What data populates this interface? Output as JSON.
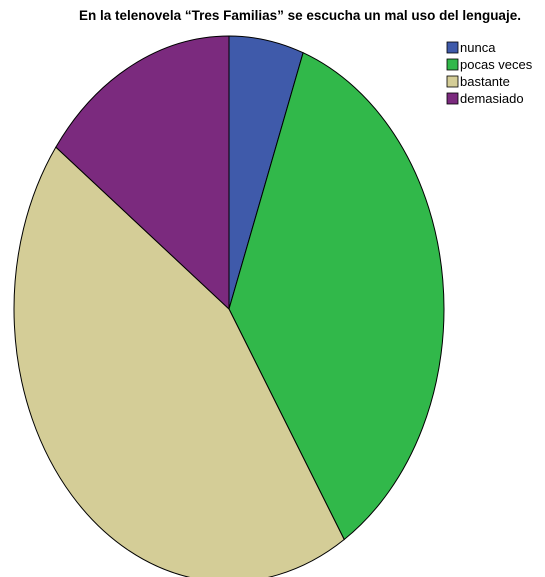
{
  "chart_data": {
    "type": "pie",
    "title": "En la telenovela “Tres Familias” se escucha un mal uso del lenguaje.",
    "series": [
      {
        "categories": [
          "nunca",
          "pocas veces",
          "bastante",
          "demasiado"
        ],
        "values": [
          5.6,
          35.4,
          44.1,
          14.9
        ],
        "unit": "%"
      }
    ],
    "colors": {
      "nunca": "#3f5aaa",
      "pocas veces": "#31b84a",
      "bastante": "#d4cd97",
      "demasiado": "#7b2a7e"
    },
    "start_angle": "top (12 o'clock), clockwise",
    "legend_position": "top-right",
    "legend_entries": [
      "nunca",
      "pocas veces",
      "bastante",
      "demasiado"
    ]
  }
}
